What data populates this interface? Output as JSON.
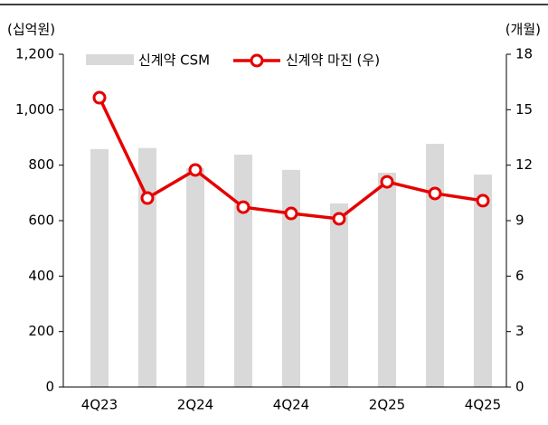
{
  "chart_data": {
    "type": "bar_line",
    "y_label": "(십억원)",
    "y2_label": "(개월)",
    "categories": [
      "4Q23",
      null,
      "2Q24",
      null,
      "4Q24",
      null,
      "2Q25",
      null,
      "4Q25"
    ],
    "series": [
      {
        "name": "신계약 CSM",
        "type": "bar",
        "color": "#d9d9d9",
        "values": [
          858,
          862,
          790,
          838,
          783,
          662,
          773,
          877,
          766
        ]
      },
      {
        "name": "신계약 마진 (우)",
        "type": "line",
        "axis": "y2",
        "color": "#e60000",
        "values": [
          15.65,
          10.22,
          11.74,
          9.73,
          9.39,
          9.1,
          11.1,
          10.47,
          10.08
        ]
      }
    ],
    "ylim": [
      0,
      1200
    ],
    "yticks": [
      0,
      200,
      400,
      600,
      800,
      {
        "value": 1000,
        "label": "1,000"
      },
      {
        "value": 1200,
        "label": "1,200"
      }
    ],
    "y2lim": [
      0,
      18
    ],
    "y2ticks": [
      0,
      3,
      6,
      9,
      12,
      15,
      18
    ],
    "legend": "top"
  }
}
